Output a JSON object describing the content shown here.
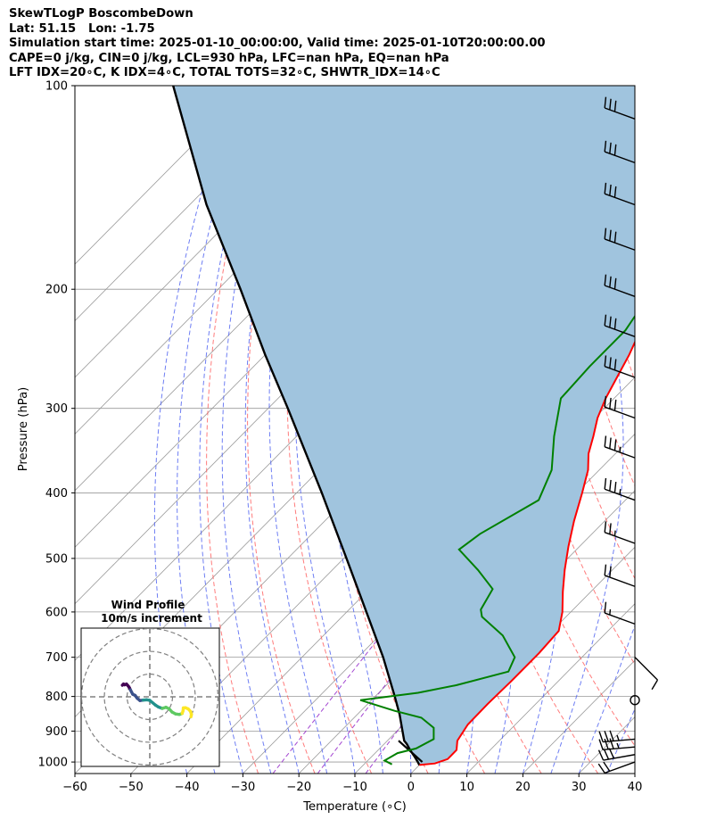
{
  "header": {
    "line1": "SkewTLogP BoscombeDown",
    "line2": "Lat: 51.15   Lon: -1.75",
    "line3": "Simulation start time: 2025-01-10_00:00:00, Valid time: 2025-01-10T20:00:00.00",
    "line4": "CAPE=0 j/kg, CIN=0 j/kg, LCL=930 hPa, LFC=nan hPa, EQ=nan hPa",
    "line5": "LFT IDX=20∘C, K IDX=4∘C, TOTAL TOTS=32∘C, SHWTR_IDX=14∘C"
  },
  "chart_data": {
    "type": "skewt-logp",
    "xlabel": "Temperature (∘C)",
    "ylabel": "Pressure (hPa)",
    "xlim": [
      -60,
      40
    ],
    "ylim": [
      1040,
      100
    ],
    "y_scale": "log",
    "grid": true,
    "x_ticks": [
      -60,
      -50,
      -40,
      -30,
      -20,
      -10,
      0,
      10,
      20,
      30,
      40
    ],
    "x_tick_labels": [
      "−60",
      "−50",
      "−40",
      "−30",
      "−20",
      "−10",
      "0",
      "10",
      "20",
      "30",
      "40"
    ],
    "y_ticks": [
      100,
      200,
      300,
      400,
      500,
      600,
      700,
      800,
      900,
      1000
    ],
    "y_tick_labels": [
      "100",
      "200",
      "300",
      "400",
      "500",
      "600",
      "700",
      "800",
      "900",
      "1000"
    ],
    "colors": {
      "temperature": "#ff0000",
      "dewpoint": "#008000",
      "parcel": "#000000",
      "fill": "#a0c4de",
      "dry_adiabats": "#ff5a5a",
      "moist_adiabats": "#4a5ef0",
      "mixing_ratio": "#9932cc",
      "isotherms": "#999999"
    },
    "series": [
      {
        "name": "temperature",
        "points": [
          [
            1010,
            0
          ],
          [
            1005,
            2.5
          ],
          [
            990,
            4
          ],
          [
            960,
            4
          ],
          [
            930,
            2.5
          ],
          [
            880,
            1.5
          ],
          [
            820,
            1.4
          ],
          [
            760,
            1.6
          ],
          [
            690,
            1.6
          ],
          [
            640,
            1.2
          ],
          [
            600,
            -1.5
          ],
          [
            560,
            -5
          ],
          [
            520,
            -8.5
          ],
          [
            480,
            -12
          ],
          [
            440,
            -15.5
          ],
          [
            400,
            -19
          ],
          [
            370,
            -22
          ],
          [
            350,
            -24.8
          ],
          [
            330,
            -27
          ],
          [
            310,
            -29.5
          ],
          [
            290,
            -31.5
          ],
          [
            270,
            -33.2
          ],
          [
            250,
            -35
          ],
          [
            237,
            -36.5
          ],
          [
            225,
            -36.5
          ],
          [
            210,
            -36.2
          ],
          [
            200,
            -36
          ],
          [
            180,
            -35
          ],
          [
            160,
            -34
          ],
          [
            140,
            -33.8
          ],
          [
            120,
            -33
          ],
          [
            108,
            -32.5
          ],
          [
            100,
            -32.7
          ]
        ]
      },
      {
        "name": "dewpoint",
        "points": [
          [
            1008,
            -5
          ],
          [
            995,
            -7
          ],
          [
            970,
            -6
          ],
          [
            955,
            -3.5
          ],
          [
            925,
            -2
          ],
          [
            890,
            -4
          ],
          [
            860,
            -8
          ],
          [
            840,
            -14
          ],
          [
            810,
            -22
          ],
          [
            790,
            -13
          ],
          [
            770,
            -7.5
          ],
          [
            735,
            -0.6
          ],
          [
            700,
            -2
          ],
          [
            650,
            -8
          ],
          [
            610,
            -15
          ],
          [
            595,
            -16.5
          ],
          [
            555,
            -18
          ],
          [
            520,
            -24
          ],
          [
            485,
            -31
          ],
          [
            460,
            -30
          ],
          [
            410,
            -25.5
          ],
          [
            370,
            -28.5
          ],
          [
            330,
            -34
          ],
          [
            290,
            -39.5
          ],
          [
            260,
            -40
          ],
          [
            230,
            -40
          ],
          [
            210,
            -41.5
          ],
          [
            200,
            -43
          ],
          [
            180,
            -41.5
          ],
          [
            160,
            -40
          ],
          [
            140,
            -38.5
          ],
          [
            120,
            -36.5
          ],
          [
            110,
            -35.3
          ],
          [
            100,
            -34
          ]
        ]
      },
      {
        "name": "parcel",
        "points": [
          [
            1010,
            0
          ],
          [
            1000,
            -0.8
          ],
          [
            980,
            -2.5
          ],
          [
            960,
            -4.3
          ],
          [
            940,
            -6
          ],
          [
            930,
            -7
          ],
          [
            900,
            -9
          ],
          [
            850,
            -12.5
          ],
          [
            800,
            -16.5
          ],
          [
            700,
            -25.5
          ],
          [
            600,
            -36.5
          ],
          [
            500,
            -49.5
          ],
          [
            400,
            -65.5
          ],
          [
            300,
            -86.5
          ],
          [
            250,
            -100
          ],
          [
            200,
            -116
          ],
          [
            150,
            -137
          ],
          [
            100,
            -164
          ]
        ]
      }
    ],
    "parcel_dry_segment": [
      [
        1000,
        0
      ],
      [
        930,
        -8
      ]
    ],
    "wind_barbs": [
      {
        "p": 1000,
        "direction": 250,
        "speed_kt": 20
      },
      {
        "p": 975,
        "direction": 260,
        "speed_kt": 30
      },
      {
        "p": 950,
        "direction": 265,
        "speed_kt": 35
      },
      {
        "p": 925,
        "direction": 265,
        "speed_kt": 35
      },
      {
        "p": 810,
        "direction": 0,
        "speed_kt": 0
      },
      {
        "p": 700,
        "direction": 135,
        "speed_kt": 10
      },
      {
        "p": 625,
        "direction": 290,
        "speed_kt": 15
      },
      {
        "p": 550,
        "direction": 290,
        "speed_kt": 20
      },
      {
        "p": 475,
        "direction": 290,
        "speed_kt": 25
      },
      {
        "p": 410,
        "direction": 290,
        "speed_kt": 35
      },
      {
        "p": 355,
        "direction": 290,
        "speed_kt": 35
      },
      {
        "p": 310,
        "direction": 290,
        "speed_kt": 30
      },
      {
        "p": 270,
        "direction": 290,
        "speed_kt": 30
      },
      {
        "p": 235,
        "direction": 290,
        "speed_kt": 30
      },
      {
        "p": 205,
        "direction": 290,
        "speed_kt": 30
      },
      {
        "p": 175,
        "direction": 290,
        "speed_kt": 30
      },
      {
        "p": 150,
        "direction": 290,
        "speed_kt": 30
      },
      {
        "p": 130,
        "direction": 290,
        "speed_kt": 30
      },
      {
        "p": 112,
        "direction": 290,
        "speed_kt": 30
      }
    ],
    "inset": {
      "title_line1": "Wind Profile",
      "title_line2": "10m/s increment",
      "hodograph_uv": [
        [
          -3,
          5
        ],
        [
          -2.5,
          5.5
        ],
        [
          -2,
          5.2
        ],
        [
          -1.2,
          5.5
        ],
        [
          -0.6,
          4.8
        ],
        [
          0,
          4
        ],
        [
          0.5,
          3
        ],
        [
          1,
          2
        ],
        [
          1.5,
          1.1
        ],
        [
          2.5,
          0.6
        ],
        [
          3.4,
          -0.6
        ],
        [
          4.6,
          -1.6
        ],
        [
          6,
          -1.4
        ],
        [
          7.5,
          -1.3
        ],
        [
          8.8,
          -1.5
        ],
        [
          10,
          -2.5
        ],
        [
          11.3,
          -3.6
        ],
        [
          12.6,
          -4.4
        ],
        [
          14.2,
          -5
        ],
        [
          15.8,
          -4.5
        ],
        [
          17.2,
          -5.2
        ],
        [
          18.5,
          -6.6
        ],
        [
          20,
          -7.4
        ],
        [
          21.6,
          -7.6
        ],
        [
          22.8,
          -7.2
        ],
        [
          23.2,
          -6
        ],
        [
          23.3,
          -4.8
        ],
        [
          24.2,
          -4.7
        ],
        [
          25.4,
          -5.2
        ],
        [
          26.4,
          -6.3
        ],
        [
          26.8,
          -7.6
        ],
        [
          26.6,
          -8.6
        ]
      ],
      "colors": [
        "#440154",
        "#3b528b",
        "#21918c",
        "#5ec962",
        "#fde725"
      ]
    }
  }
}
